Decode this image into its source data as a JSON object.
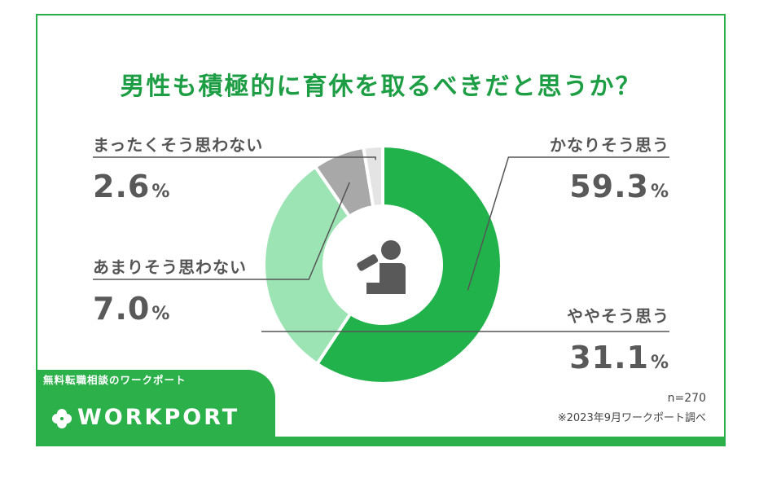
{
  "chart_data": {
    "type": "pie",
    "title": "男性も積極的に育休を取るべきだと思うか？",
    "unit": "%",
    "slices": [
      {
        "label": "かなりそう思う",
        "value": 59.3,
        "value_text": "59.3",
        "color": "#22b24c"
      },
      {
        "label": "ややそう思う",
        "value": 31.1,
        "value_text": "31.1",
        "color": "#9de4b4"
      },
      {
        "label": "あまりそう思わない",
        "value": 7.0,
        "value_text": "7.0",
        "color": "#a8a8a8"
      },
      {
        "label": "まったくそう思わない",
        "value": 2.6,
        "value_text": "2.6",
        "color": "#e4e4e4"
      }
    ],
    "center_icon": "parent-bottle-feeding-icon"
  },
  "footer": {
    "sample_size": "n=270",
    "source": "※2023年9月ワークポート調べ"
  },
  "brand": {
    "tagline": "無料転職相談のワークポート",
    "name": "WORKPORT",
    "icon": "clover-icon",
    "color": "#2bb04a"
  }
}
